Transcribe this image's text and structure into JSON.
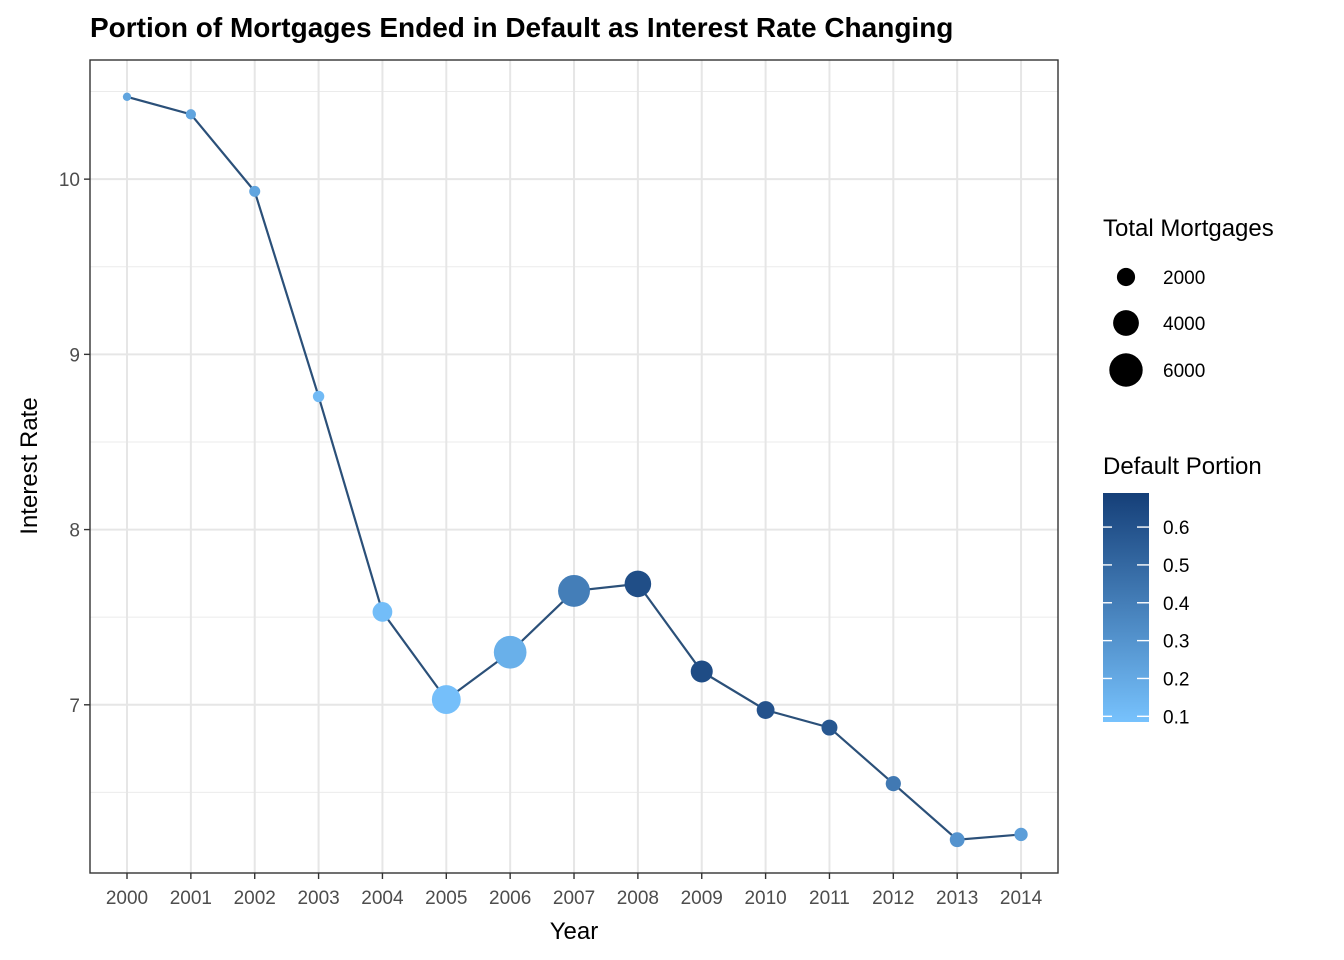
{
  "chart_data": {
    "type": "scatter",
    "title": "Portion of Mortgages Ended in Default as Interest Rate Changing",
    "xlabel": "Year",
    "ylabel": "Interest Rate",
    "x": [
      2000,
      2001,
      2002,
      2003,
      2004,
      2005,
      2006,
      2007,
      2008,
      2009,
      2010,
      2011,
      2012,
      2013,
      2014
    ],
    "x_tick_labels": [
      "2000",
      "2001",
      "2002",
      "2003",
      "2004",
      "2005",
      "2006",
      "2007",
      "2008",
      "2009",
      "2010",
      "2011",
      "2012",
      "2013",
      "2014"
    ],
    "interest_rate": [
      10.47,
      10.37,
      9.93,
      8.76,
      7.53,
      7.03,
      7.3,
      7.65,
      7.69,
      7.19,
      6.97,
      6.87,
      6.55,
      6.23,
      6.26
    ],
    "total_mortgages": [
      200,
      700,
      900,
      1000,
      3200,
      5600,
      6600,
      6400,
      5000,
      3800,
      2700,
      2200,
      2000,
      1900,
      1500
    ],
    "default_portion": [
      0.22,
      0.22,
      0.22,
      0.12,
      0.11,
      0.1,
      0.17,
      0.4,
      0.62,
      0.63,
      0.6,
      0.58,
      0.42,
      0.3,
      0.25
    ],
    "ylim": [
      6.04,
      10.68
    ],
    "y_ticks": [
      7,
      8,
      9,
      10
    ],
    "y_tick_labels": [
      "7",
      "8",
      "9",
      "10"
    ],
    "line_color": "#2b5079",
    "grid": true,
    "legend_position": "right",
    "size_legend": {
      "title": "Total Mortgages",
      "values": [
        2000,
        4000,
        6000
      ],
      "labels": [
        "2000",
        "4000",
        "6000"
      ]
    },
    "color_legend": {
      "title": "Default Portion",
      "low_color": "#77c2fd",
      "high_color": "#153f78",
      "range": [
        0.085,
        0.69
      ],
      "ticks": [
        0.1,
        0.2,
        0.3,
        0.4,
        0.5,
        0.6
      ],
      "labels": [
        "0.1",
        "0.2",
        "0.3",
        "0.4",
        "0.5",
        "0.6"
      ]
    }
  }
}
